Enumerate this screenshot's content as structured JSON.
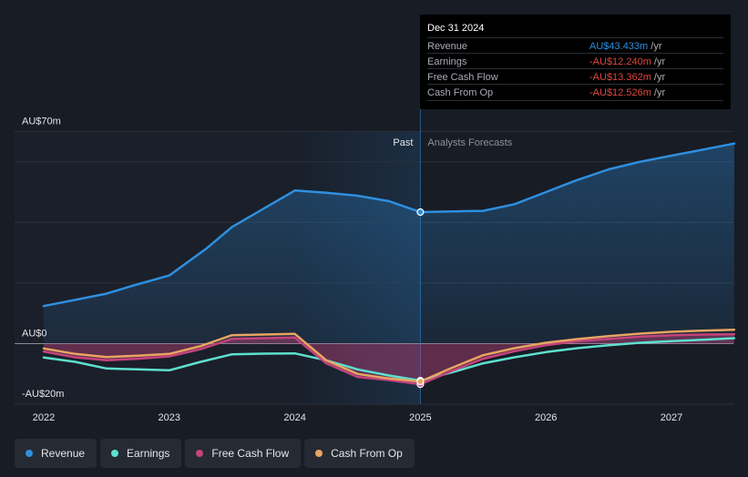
{
  "chart_data": {
    "type": "line",
    "title": "",
    "x_ticks": [
      "2022",
      "2023",
      "2024",
      "2025",
      "2026",
      "2027"
    ],
    "xlim": [
      2021.8,
      2027.5
    ],
    "ylim": [
      -20,
      70
    ],
    "y_tick_labels": [
      {
        "value": 70,
        "label": "AU$70m"
      },
      {
        "value": 0,
        "label": "AU$0"
      },
      {
        "value": -20,
        "label": "-AU$20m"
      }
    ],
    "gridlines": [
      70,
      60,
      40,
      20,
      0,
      -20
    ],
    "divider_x": 2025.0,
    "past_start_x": 2024.0,
    "past_label": "Past",
    "forecast_label": "Analysts Forecasts",
    "series": [
      {
        "name": "Revenue",
        "color": "#2e8fe0",
        "area": true,
        "points": [
          [
            2022.0,
            12.4
          ],
          [
            2022.5,
            16.5
          ],
          [
            2022.7,
            19.0
          ],
          [
            2023.0,
            22.5
          ],
          [
            2023.3,
            31.5
          ],
          [
            2023.5,
            38.5
          ],
          [
            2023.75,
            44.5
          ],
          [
            2024.0,
            50.5
          ],
          [
            2024.25,
            49.8
          ],
          [
            2024.5,
            48.8
          ],
          [
            2024.75,
            47.0
          ],
          [
            2025.0,
            43.4
          ],
          [
            2025.5,
            43.8
          ],
          [
            2025.75,
            46.0
          ],
          [
            2026.0,
            50.0
          ],
          [
            2026.25,
            54.0
          ],
          [
            2026.5,
            57.5
          ],
          [
            2026.75,
            60.0
          ],
          [
            2027.0,
            62.0
          ],
          [
            2027.25,
            64.0
          ],
          [
            2027.5,
            66.0
          ]
        ]
      },
      {
        "name": "Earnings",
        "color": "#5ee0cf",
        "points": [
          [
            2022.0,
            -4.6
          ],
          [
            2022.25,
            -6.0
          ],
          [
            2022.5,
            -8.2
          ],
          [
            2022.75,
            -8.5
          ],
          [
            2023.0,
            -8.8
          ],
          [
            2023.25,
            -6.0
          ],
          [
            2023.5,
            -3.5
          ],
          [
            2023.75,
            -3.3
          ],
          [
            2024.0,
            -3.2
          ],
          [
            2024.25,
            -5.5
          ],
          [
            2024.5,
            -8.5
          ],
          [
            2024.75,
            -10.5
          ],
          [
            2025.0,
            -12.2
          ],
          [
            2025.25,
            -9.5
          ],
          [
            2025.5,
            -6.5
          ],
          [
            2025.75,
            -4.5
          ],
          [
            2026.0,
            -2.8
          ],
          [
            2026.25,
            -1.5
          ],
          [
            2026.5,
            -0.5
          ],
          [
            2026.75,
            0.3
          ],
          [
            2027.0,
            0.8
          ],
          [
            2027.25,
            1.3
          ],
          [
            2027.5,
            1.8
          ]
        ]
      },
      {
        "name": "Free Cash Flow",
        "color": "#c4437c",
        "area": true,
        "points": [
          [
            2022.0,
            -2.6
          ],
          [
            2022.25,
            -4.5
          ],
          [
            2022.5,
            -5.5
          ],
          [
            2022.75,
            -5.0
          ],
          [
            2023.0,
            -4.2
          ],
          [
            2023.25,
            -1.8
          ],
          [
            2023.5,
            1.6
          ],
          [
            2023.75,
            1.8
          ],
          [
            2024.0,
            2.0
          ],
          [
            2024.25,
            -6.5
          ],
          [
            2024.5,
            -11.0
          ],
          [
            2024.75,
            -12.0
          ],
          [
            2025.0,
            -13.4
          ],
          [
            2025.25,
            -9.0
          ],
          [
            2025.5,
            -5.0
          ],
          [
            2025.75,
            -2.5
          ],
          [
            2026.0,
            -0.5
          ],
          [
            2026.25,
            0.8
          ],
          [
            2026.5,
            1.6
          ],
          [
            2026.75,
            2.3
          ],
          [
            2027.0,
            2.8
          ],
          [
            2027.25,
            3.0
          ],
          [
            2027.5,
            3.1
          ]
        ]
      },
      {
        "name": "Cash From Op",
        "color": "#e8a562",
        "points": [
          [
            2022.0,
            -1.6
          ],
          [
            2022.25,
            -3.4
          ],
          [
            2022.5,
            -4.4
          ],
          [
            2022.75,
            -4.0
          ],
          [
            2023.0,
            -3.4
          ],
          [
            2023.25,
            -0.8
          ],
          [
            2023.5,
            2.8
          ],
          [
            2023.75,
            3.0
          ],
          [
            2024.0,
            3.2
          ],
          [
            2024.25,
            -5.5
          ],
          [
            2024.5,
            -10.0
          ],
          [
            2024.75,
            -11.5
          ],
          [
            2025.0,
            -12.5
          ],
          [
            2025.25,
            -8.0
          ],
          [
            2025.5,
            -3.8
          ],
          [
            2025.75,
            -1.5
          ],
          [
            2026.0,
            0.3
          ],
          [
            2026.25,
            1.5
          ],
          [
            2026.5,
            2.5
          ],
          [
            2026.75,
            3.3
          ],
          [
            2027.0,
            3.9
          ],
          [
            2027.25,
            4.3
          ],
          [
            2027.5,
            4.6
          ]
        ]
      }
    ],
    "tooltip": {
      "date": "Dec 31 2024",
      "rows": [
        {
          "label": "Revenue",
          "value": "AU$43.433m",
          "unit": " /yr",
          "color": "#2e8fe0"
        },
        {
          "label": "Earnings",
          "value": "-AU$12.240m",
          "unit": " /yr",
          "color": "#e0473f"
        },
        {
          "label": "Free Cash Flow",
          "value": "-AU$13.362m",
          "unit": " /yr",
          "color": "#e0473f"
        },
        {
          "label": "Cash From Op",
          "value": "-AU$12.526m",
          "unit": " /yr",
          "color": "#e0473f"
        }
      ]
    },
    "legend": [
      {
        "label": "Revenue",
        "color": "#2e8fe0"
      },
      {
        "label": "Earnings",
        "color": "#5ee0cf"
      },
      {
        "label": "Free Cash Flow",
        "color": "#c4437c"
      },
      {
        "label": "Cash From Op",
        "color": "#e8a562"
      }
    ]
  }
}
